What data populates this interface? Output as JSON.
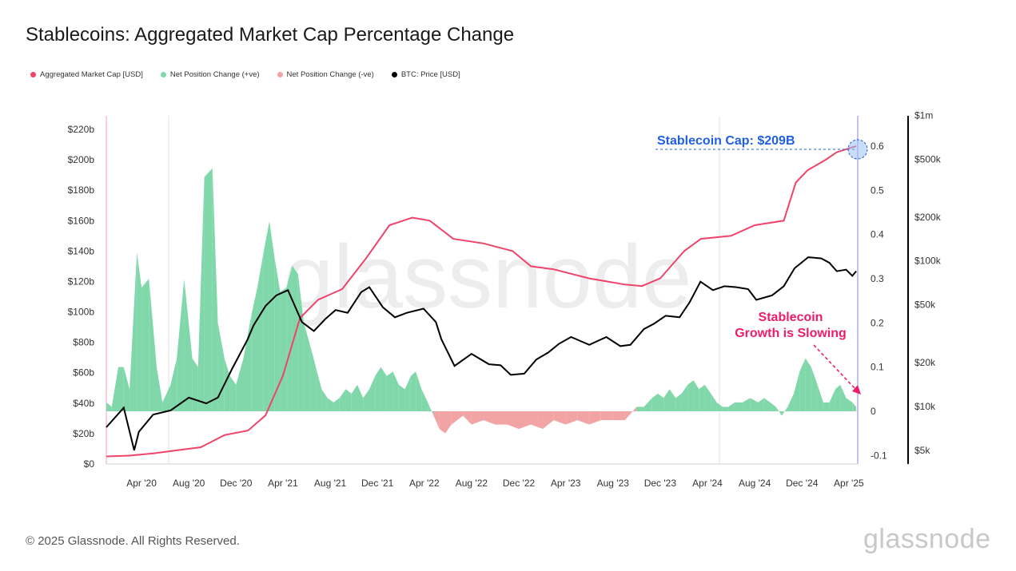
{
  "title": "Stablecoins: Aggregated Market Cap Percentage Change",
  "legend": [
    {
      "label": "Aggregated Market Cap [USD]",
      "color": "#f0436a"
    },
    {
      "label": "Net Position Change (+ve)",
      "color": "#80d8aa"
    },
    {
      "label": "Net Position Change (-ve)",
      "color": "#f2a3a3"
    },
    {
      "label": "BTC: Price [USD]",
      "color": "#000000"
    }
  ],
  "footer": "© 2025 Glassnode. All Rights Reserved.",
  "brand": "glassnode",
  "watermark": "glassnode",
  "chart_data": {
    "type": "line",
    "x_ticks": [
      "Apr '20",
      "Aug '20",
      "Dec '20",
      "Apr '21",
      "Aug '21",
      "Dec '21",
      "Apr '22",
      "Aug '22",
      "Dec '22",
      "Apr '23",
      "Aug '23",
      "Dec '23",
      "Apr '24",
      "Aug '24",
      "Dec '24",
      "Apr '25"
    ],
    "y_left_ticks": [
      "$0",
      "$20b",
      "$40b",
      "$60b",
      "$80b",
      "$100b",
      "$120b",
      "$140b",
      "$160b",
      "$180b",
      "$200b",
      "$220b"
    ],
    "y_left_range": [
      0,
      220
    ],
    "y_mid_ticks": [
      "-0.1",
      "0",
      "0.1",
      "0.2",
      "0.3",
      "0.4",
      "0.5",
      "0.6"
    ],
    "y_mid_range": [
      -0.1,
      0.6
    ],
    "y_right_ticks": [
      "$5k",
      "$10k",
      "$20k",
      "$50k",
      "$100k",
      "$200k",
      "$500k",
      "$1m"
    ],
    "y_right_scale": "log",
    "grid": false,
    "legend_position": "top-left",
    "series": [
      {
        "name": "Aggregated Market Cap [USD]",
        "color": "#f0436a",
        "axis": "left",
        "x": [
          "2020-01-01",
          "2020-03-01",
          "2020-05-01",
          "2020-07-01",
          "2020-09-01",
          "2020-11-01",
          "2021-01-01",
          "2021-02-15",
          "2021-04-01",
          "2021-05-15",
          "2021-07-01",
          "2021-09-01",
          "2021-11-01",
          "2022-01-01",
          "2022-03-01",
          "2022-04-15",
          "2022-06-15",
          "2022-09-01",
          "2022-11-15",
          "2023-01-01",
          "2023-03-01",
          "2023-06-01",
          "2023-09-01",
          "2023-10-15",
          "2023-12-01",
          "2024-02-01",
          "2024-03-15",
          "2024-06-01",
          "2024-08-01",
          "2024-10-15",
          "2024-11-15",
          "2024-12-15",
          "2025-01-31",
          "2025-03-01",
          "2025-04-20"
        ],
        "values": [
          5,
          5.5,
          7,
          9,
          11,
          19,
          22,
          32,
          58,
          96,
          108,
          115,
          135,
          157,
          162,
          160,
          148,
          145,
          140,
          130,
          128,
          122,
          118,
          117,
          122,
          140,
          148,
          150,
          157,
          160,
          185,
          193,
          200,
          205,
          209
        ]
      },
      {
        "name": "BTC: Price [USD]",
        "color": "#000000",
        "axis": "right",
        "x": [
          "2020-01-01",
          "2020-02-15",
          "2020-03-13",
          "2020-03-25",
          "2020-05-01",
          "2020-06-15",
          "2020-08-01",
          "2020-09-15",
          "2020-10-15",
          "2020-11-20",
          "2020-12-31",
          "2021-01-15",
          "2021-02-15",
          "2021-03-15",
          "2021-04-14",
          "2021-05-20",
          "2021-06-20",
          "2021-07-20",
          "2021-08-15",
          "2021-09-15",
          "2021-10-20",
          "2021-11-10",
          "2021-12-15",
          "2022-01-15",
          "2022-02-15",
          "2022-03-30",
          "2022-05-01",
          "2022-05-15",
          "2022-06-18",
          "2022-08-01",
          "2022-09-15",
          "2022-10-15",
          "2022-11-10",
          "2022-12-15",
          "2023-01-15",
          "2023-02-15",
          "2023-03-15",
          "2023-04-15",
          "2023-06-01",
          "2023-07-15",
          "2023-08-20",
          "2023-09-15",
          "2023-10-20",
          "2023-11-15",
          "2023-12-15",
          "2024-01-20",
          "2024-02-15",
          "2024-03-14",
          "2024-04-15",
          "2024-05-15",
          "2024-06-15",
          "2024-07-15",
          "2024-08-05",
          "2024-09-15",
          "2024-10-15",
          "2024-11-12",
          "2024-12-17",
          "2025-01-20",
          "2025-02-10",
          "2025-03-01",
          "2025-03-25",
          "2025-04-10",
          "2025-04-20"
        ],
        "values": [
          7200,
          9800,
          5000,
          6700,
          8800,
          9400,
          11500,
          10500,
          11500,
          18000,
          29000,
          36000,
          49000,
          58000,
          63000,
          38000,
          33000,
          40000,
          46000,
          44000,
          61000,
          66000,
          48000,
          41000,
          44000,
          47000,
          38000,
          29000,
          19000,
          23000,
          19500,
          19200,
          16500,
          16800,
          21000,
          23500,
          27000,
          30000,
          26500,
          30000,
          26000,
          26500,
          34000,
          37000,
          42000,
          41000,
          52000,
          72000,
          63000,
          67000,
          66000,
          64000,
          54000,
          58000,
          67000,
          89000,
          106000,
          104000,
          97000,
          85000,
          87000,
          79000,
          85000
        ]
      },
      {
        "name": "Net Position Change",
        "color_positive": "#80d8aa",
        "color_negative": "#f2a3a3",
        "axis": "middle",
        "x": [
          "2020-01-01",
          "2020-01-15",
          "2020-02-01",
          "2020-02-15",
          "2020-03-01",
          "2020-03-20",
          "2020-04-01",
          "2020-04-20",
          "2020-05-10",
          "2020-05-25",
          "2020-06-15",
          "2020-07-01",
          "2020-07-20",
          "2020-08-10",
          "2020-08-25",
          "2020-09-10",
          "2020-10-01",
          "2020-10-15",
          "2020-11-01",
          "2020-11-15",
          "2020-12-01",
          "2020-12-20",
          "2021-01-10",
          "2021-01-25",
          "2021-02-10",
          "2021-02-25",
          "2021-03-10",
          "2021-03-25",
          "2021-04-10",
          "2021-04-25",
          "2021-05-10",
          "2021-05-25",
          "2021-06-10",
          "2021-06-25",
          "2021-07-10",
          "2021-07-25",
          "2021-08-10",
          "2021-08-25",
          "2021-09-10",
          "2021-09-25",
          "2021-10-10",
          "2021-10-25",
          "2021-11-10",
          "2021-11-25",
          "2021-12-10",
          "2021-12-25",
          "2022-01-10",
          "2022-01-25",
          "2022-02-10",
          "2022-02-25",
          "2022-03-10",
          "2022-03-25",
          "2022-04-10",
          "2022-04-25",
          "2022-05-10",
          "2022-05-25",
          "2022-06-10",
          "2022-06-25",
          "2022-07-10",
          "2022-08-01",
          "2022-09-01",
          "2022-10-01",
          "2022-11-01",
          "2022-12-01",
          "2023-01-01",
          "2023-02-01",
          "2023-03-01",
          "2023-04-01",
          "2023-05-01",
          "2023-06-01",
          "2023-07-01",
          "2023-08-01",
          "2023-09-01",
          "2023-10-01",
          "2023-10-20",
          "2023-11-10",
          "2023-11-25",
          "2023-12-10",
          "2023-12-25",
          "2024-01-10",
          "2024-01-25",
          "2024-02-10",
          "2024-02-25",
          "2024-03-10",
          "2024-03-25",
          "2024-04-10",
          "2024-04-25",
          "2024-05-10",
          "2024-05-25",
          "2024-06-10",
          "2024-07-01",
          "2024-07-20",
          "2024-08-10",
          "2024-08-25",
          "2024-09-10",
          "2024-09-25",
          "2024-10-10",
          "2024-10-25",
          "2024-11-10",
          "2024-11-25",
          "2024-12-10",
          "2024-12-25",
          "2025-01-10",
          "2025-01-25",
          "2025-02-10",
          "2025-02-25",
          "2025-03-10",
          "2025-03-25",
          "2025-04-10",
          "2025-04-20"
        ],
        "values": [
          0.02,
          0.01,
          0.1,
          0.1,
          0.05,
          0.36,
          0.28,
          0.3,
          0.1,
          0.02,
          0.06,
          0.12,
          0.3,
          0.12,
          0.1,
          0.53,
          0.55,
          0.2,
          0.12,
          0.08,
          0.06,
          0.12,
          0.22,
          0.28,
          0.36,
          0.43,
          0.35,
          0.27,
          0.28,
          0.33,
          0.31,
          0.2,
          0.15,
          0.1,
          0.05,
          0.03,
          0.02,
          0.03,
          0.05,
          0.04,
          0.06,
          0.03,
          0.05,
          0.08,
          0.1,
          0.08,
          0.09,
          0.06,
          0.05,
          0.08,
          0.09,
          0.05,
          0.02,
          -0.01,
          -0.04,
          -0.05,
          -0.03,
          -0.02,
          -0.01,
          -0.03,
          -0.02,
          -0.03,
          -0.03,
          -0.04,
          -0.03,
          -0.04,
          -0.02,
          -0.03,
          -0.02,
          -0.03,
          -0.02,
          -0.02,
          -0.02,
          0.01,
          0.01,
          0.03,
          0.04,
          0.03,
          0.05,
          0.03,
          0.04,
          0.06,
          0.07,
          0.05,
          0.06,
          0.04,
          0.02,
          0.01,
          0.01,
          0.02,
          0.02,
          0.03,
          0.02,
          0.03,
          0.02,
          0.01,
          -0.01,
          0.01,
          0.04,
          0.09,
          0.12,
          0.1,
          0.06,
          0.02,
          0.02,
          0.05,
          0.06,
          0.03,
          0.02,
          0.01
        ]
      }
    ],
    "annotations": [
      {
        "text": "Stablecoin Cap: $209B",
        "color": "#1f5fe0"
      },
      {
        "text": "Stablecoin",
        "color": "#ee1c6a"
      },
      {
        "text": "Growth is Slowing",
        "color": "#ee1c6a"
      }
    ]
  }
}
